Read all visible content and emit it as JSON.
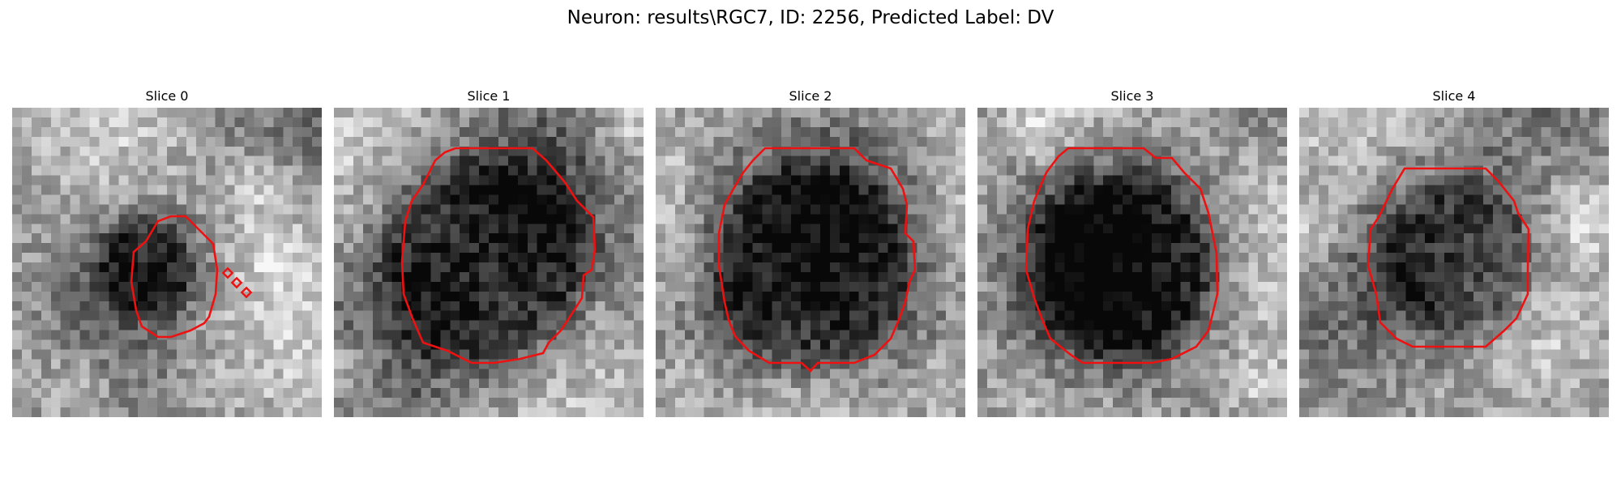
{
  "figure": {
    "title": "Neuron: results\\RGC7, ID: 2256, Predicted Label: DV"
  },
  "panels": [
    {
      "title": "Slice 0",
      "seed": 11,
      "center": [
        0.43,
        0.52
      ],
      "radius": 0.17,
      "darkness": 0.55,
      "bright_spots": [
        [
          0.8,
          0.25
        ],
        [
          0.85,
          0.45
        ],
        [
          0.2,
          0.9
        ]
      ]
    },
    {
      "title": "Slice 1",
      "seed": 23,
      "center": [
        0.48,
        0.5
      ],
      "radius": 0.37,
      "darkness": 0.65,
      "bright_spots": [
        [
          0.05,
          0.85
        ],
        [
          0.95,
          0.05
        ]
      ]
    },
    {
      "title": "Slice 2",
      "seed": 37,
      "center": [
        0.5,
        0.52
      ],
      "radius": 0.36,
      "darkness": 0.6,
      "bright_spots": [
        [
          0.1,
          0.9
        ],
        [
          0.95,
          0.9
        ]
      ]
    },
    {
      "title": "Slice 3",
      "seed": 53,
      "center": [
        0.47,
        0.52
      ],
      "radius": 0.33,
      "darkness": 0.68,
      "bright_spots": [
        [
          0.2,
          0.08
        ],
        [
          0.9,
          0.9
        ]
      ]
    },
    {
      "title": "Slice 4",
      "seed": 71,
      "center": [
        0.51,
        0.48
      ],
      "radius": 0.27,
      "darkness": 0.55,
      "bright_spots": [
        [
          0.92,
          0.35
        ],
        [
          0.05,
          0.4
        ]
      ]
    }
  ],
  "colors": {
    "contour": "#ee1111",
    "background": "#ffffff"
  }
}
